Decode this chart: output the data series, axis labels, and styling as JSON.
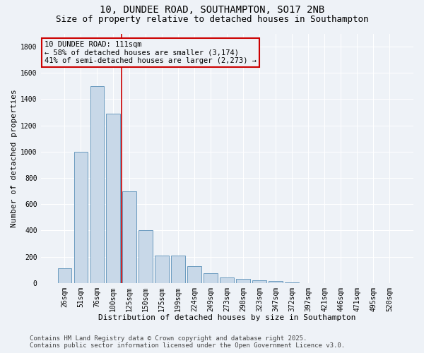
{
  "title_line1": "10, DUNDEE ROAD, SOUTHAMPTON, SO17 2NB",
  "title_line2": "Size of property relative to detached houses in Southampton",
  "categories": [
    "26sqm",
    "51sqm",
    "76sqm",
    "100sqm",
    "125sqm",
    "150sqm",
    "175sqm",
    "199sqm",
    "224sqm",
    "249sqm",
    "273sqm",
    "298sqm",
    "323sqm",
    "347sqm",
    "372sqm",
    "397sqm",
    "421sqm",
    "446sqm",
    "471sqm",
    "495sqm",
    "520sqm"
  ],
  "values": [
    110,
    1000,
    1500,
    1290,
    700,
    400,
    210,
    210,
    130,
    75,
    40,
    30,
    20,
    15,
    5,
    0,
    0,
    0,
    0,
    0,
    0
  ],
  "bar_color": "#c8d8e8",
  "bar_edge_color": "#5a90b8",
  "vline_color": "#cc0000",
  "vline_x_index": 3,
  "annotation_text": "10 DUNDEE ROAD: 111sqm\n← 58% of detached houses are smaller (3,174)\n41% of semi-detached houses are larger (2,273) →",
  "annotation_box_color": "#cc0000",
  "xlabel": "Distribution of detached houses by size in Southampton",
  "ylabel": "Number of detached properties",
  "ylim": [
    0,
    1900
  ],
  "yticks": [
    0,
    200,
    400,
    600,
    800,
    1000,
    1200,
    1400,
    1600,
    1800
  ],
  "footer_line1": "Contains HM Land Registry data © Crown copyright and database right 2025.",
  "footer_line2": "Contains public sector information licensed under the Open Government Licence v3.0.",
  "bg_color": "#eef2f7",
  "grid_color": "#ffffff",
  "title_fontsize": 10,
  "subtitle_fontsize": 9,
  "axis_label_fontsize": 8,
  "tick_fontsize": 7,
  "annotation_fontsize": 7.5,
  "footer_fontsize": 6.5
}
